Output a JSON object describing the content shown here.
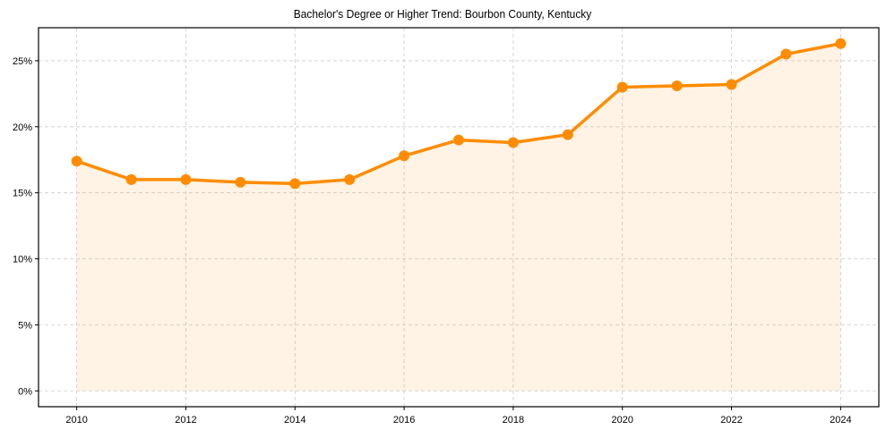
{
  "chart_data": {
    "type": "line",
    "title": "Bachelor's Degree or Higher Trend: Bourbon County, Kentucky",
    "xlabel": "",
    "ylabel": "",
    "x": [
      2010,
      2011,
      2012,
      2013,
      2014,
      2015,
      2016,
      2017,
      2018,
      2019,
      2020,
      2021,
      2022,
      2023,
      2024
    ],
    "series": [
      {
        "name": "Bachelor's Degree or Higher (%)",
        "values": [
          17.4,
          16.0,
          16.0,
          15.8,
          15.7,
          16.0,
          17.8,
          19.0,
          18.8,
          19.4,
          23.0,
          23.1,
          23.2,
          25.5,
          26.3
        ],
        "color": "#ff8c00",
        "fill": "#ffe6cc",
        "marker": "circle"
      }
    ],
    "x_ticks": [
      "2010",
      "2012",
      "2014",
      "2016",
      "2018",
      "2020",
      "2022",
      "2024"
    ],
    "y_ticks": [
      "0%",
      "5%",
      "10%",
      "15%",
      "20%",
      "25%"
    ],
    "ylim": [
      -1.2,
      27.5
    ],
    "xlim": [
      2009.3,
      2024.7
    ],
    "grid": true,
    "legend": null
  }
}
